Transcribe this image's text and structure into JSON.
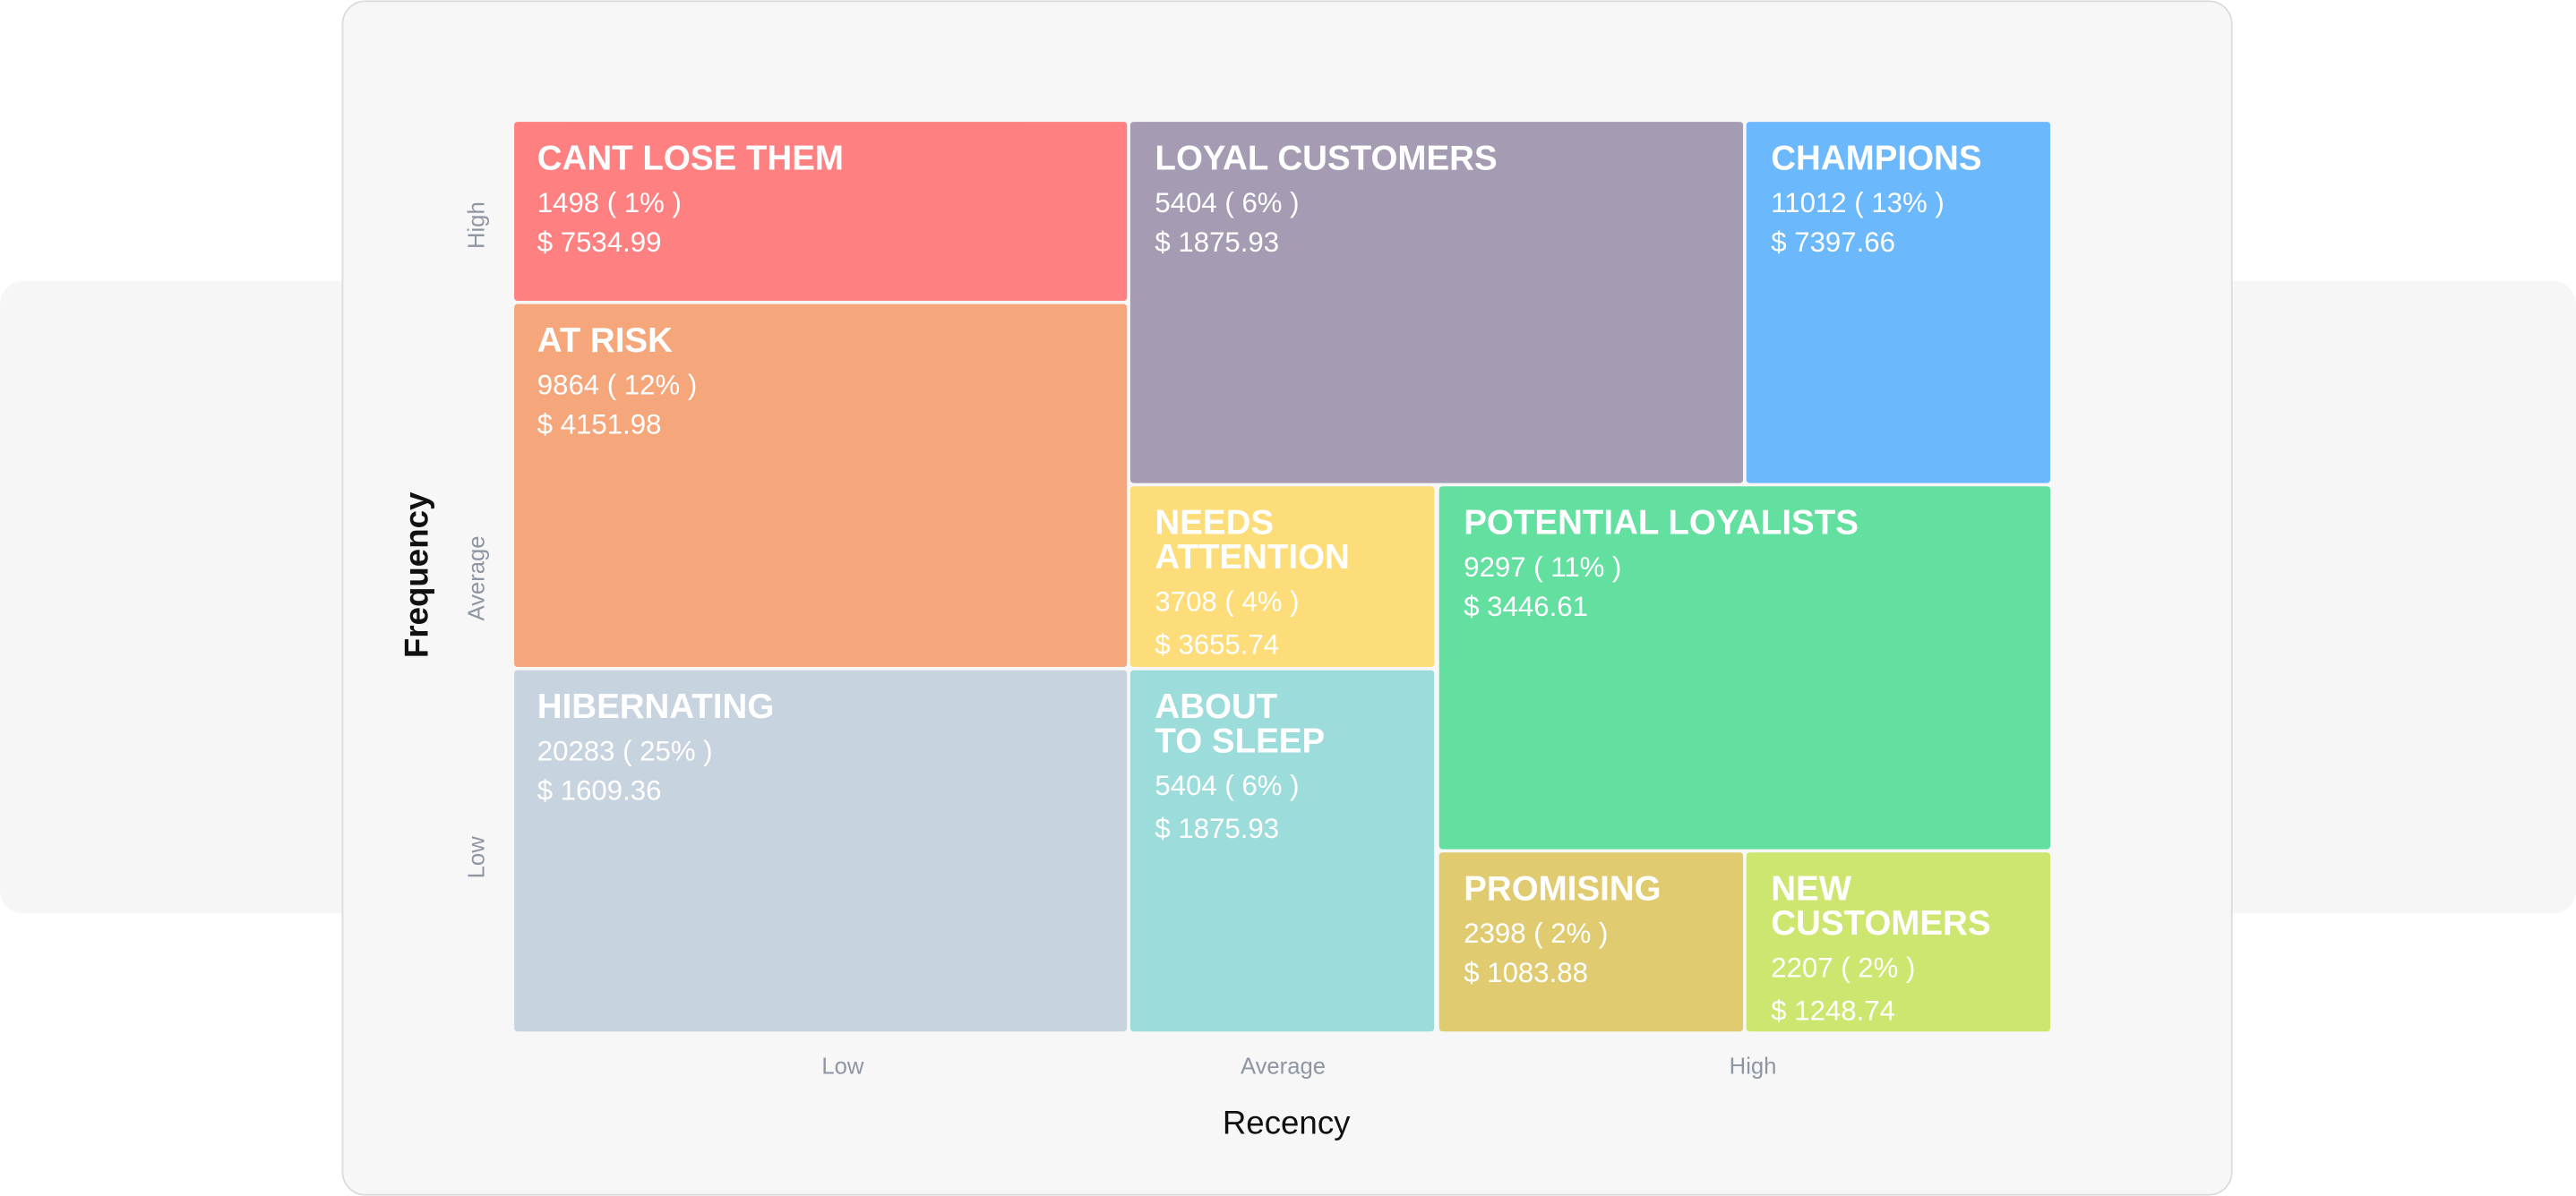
{
  "y_axis": {
    "title": "Frequency",
    "ticks": [
      "High",
      "Average",
      "Low"
    ]
  },
  "x_axis": {
    "title": "Recency",
    "ticks": [
      "Low",
      "Average",
      "High"
    ]
  },
  "segments": [
    {
      "title": [
        "CANT LOSE THEM"
      ],
      "count": "1498 ( 1% )",
      "value": "$ 7534.99"
    },
    {
      "title": [
        "AT RISK"
      ],
      "count": "9864 ( 12% )",
      "value": "$ 4151.98"
    },
    {
      "title": [
        "HIBERNATING"
      ],
      "count": "20283 ( 25% )",
      "value": "$ 1609.36"
    },
    {
      "title": [
        "LOYAL CUSTOMERS"
      ],
      "count": "5404 ( 6% )",
      "value": "$ 1875.93"
    },
    {
      "title": [
        "CHAMPIONS"
      ],
      "count": "11012 ( 13% )",
      "value": "$ 7397.66"
    },
    {
      "title": [
        "NEEDS",
        "ATTENTION"
      ],
      "count": "3708 ( 4% )",
      "value": "$ 3655.74"
    },
    {
      "title": [
        "ABOUT",
        "TO SLEEP"
      ],
      "count": "5404 ( 6% )",
      "value": "$ 1875.93"
    },
    {
      "title": [
        "POTENTIAL LOYALISTS"
      ],
      "count": "9297 ( 11% )",
      "value": "$ 3446.61"
    },
    {
      "title": [
        "PROMISING"
      ],
      "count": "2398 ( 2% )",
      "value": "$ 1083.88"
    },
    {
      "title": [
        "NEW",
        "CUSTOMERS"
      ],
      "count": "2207 ( 2% )",
      "value": "$ 1248.74"
    }
  ]
}
